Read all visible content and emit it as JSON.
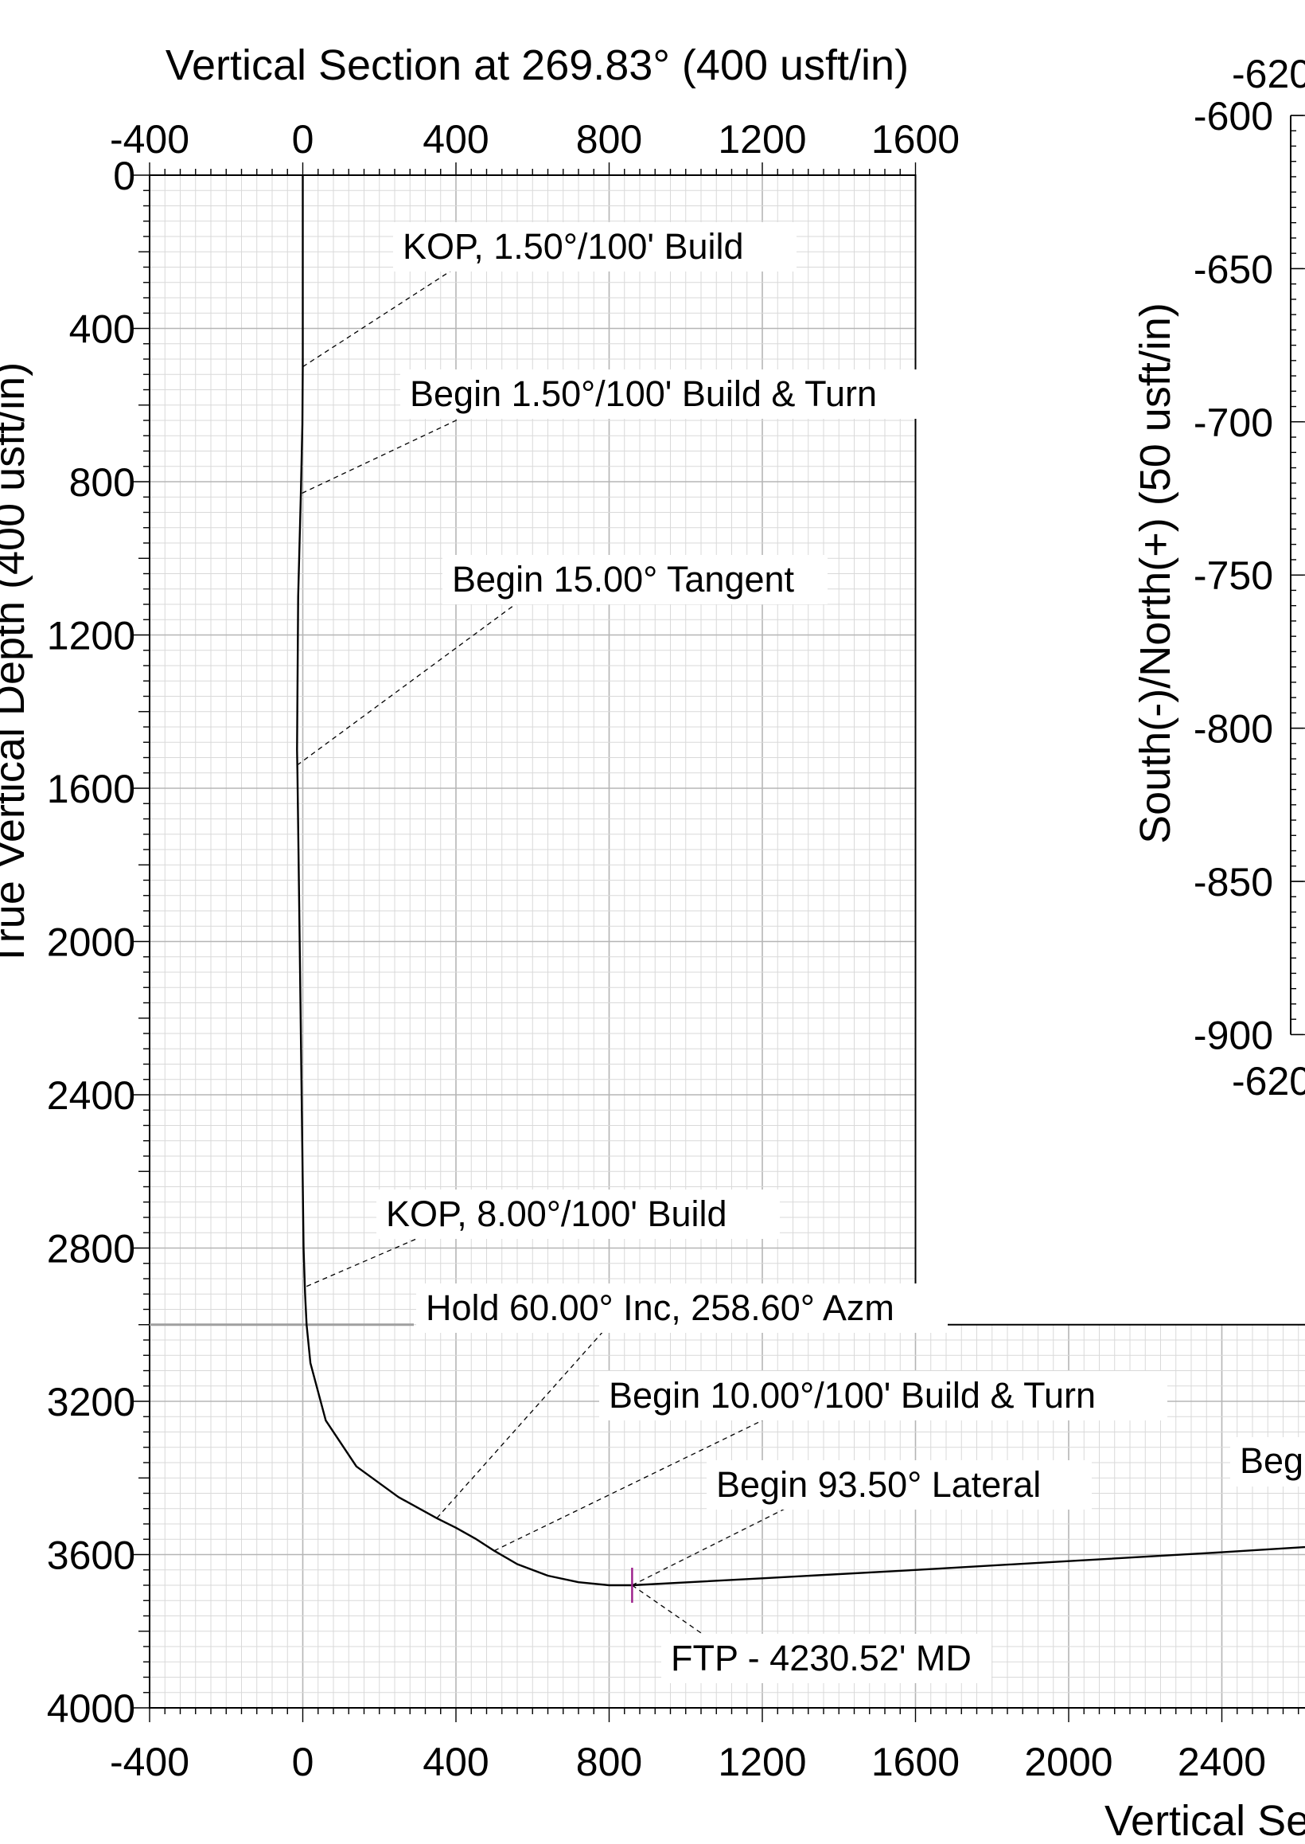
{
  "chart_data": [
    {
      "type": "line",
      "title": "Vertical Section at 269.83° (400 usft/in)",
      "xlabel": "Vertical Se",
      "ylabel": "True Vertical Depth (400 usft/in)",
      "xlim": [
        -400,
        2800
      ],
      "ylim": [
        4000,
        0
      ],
      "x_ticks_top": [
        "-400",
        "0",
        "400",
        "800",
        "1200",
        "1600"
      ],
      "x_ticks_bottom": [
        "-400",
        "0",
        "400",
        "800",
        "1200",
        "1600",
        "2000",
        "2400"
      ],
      "y_ticks": [
        "0",
        "400",
        "800",
        "1200",
        "1600",
        "2000",
        "2400",
        "2800",
        "3200",
        "3600",
        "4000"
      ],
      "grid": true,
      "series": [
        {
          "x": [
            0,
            0,
            -1,
            -5,
            -12,
            -15,
            -14,
            -12,
            -8,
            2,
            6,
            10,
            20,
            60,
            140,
            250,
            350,
            400,
            450,
            500,
            560,
            640,
            720,
            800,
            860,
            1200,
            1600,
            2000,
            2400,
            2800
          ],
          "y": [
            0,
            500,
            650,
            830,
            1100,
            1500,
            1560,
            1700,
            2000,
            2800,
            2920,
            3000,
            3100,
            3250,
            3370,
            3450,
            3505,
            3530,
            3558,
            3590,
            3625,
            3655,
            3672,
            3680,
            3680,
            3662,
            3640,
            3617,
            3594,
            3569
          ]
        }
      ],
      "annotations": [
        {
          "text": "KOP, 1.50°/100' Build",
          "x": 0,
          "y": 500,
          "label_x": 510,
          "label_y": 170
        },
        {
          "text": "Begin 1.50°/100' Build & Turn",
          "x": -2,
          "y": 830,
          "label_x": 570,
          "label_y": 560
        },
        {
          "text": "Begin 15.00° Tangent",
          "x": -15,
          "y": 1540,
          "label_x": 650,
          "label_y": 1050
        },
        {
          "text": "KOP, 8.00°/100' Build",
          "x": 10,
          "y": 2900,
          "label_x": 380,
          "label_y": 2740
        },
        {
          "text": "Hold 60.00° Inc, 258.60° Azm",
          "x": 350,
          "y": 3505,
          "label_x": 800,
          "label_y": 3000
        },
        {
          "text": "Begin 10.00°/100' Build & Turn",
          "x": 500,
          "y": 3590,
          "label_x": 1200,
          "label_y": 3250
        },
        {
          "text": "Begin 93.50° Lateral",
          "x": 860,
          "y": 3680,
          "label_x": 1260,
          "label_y": 3480
        },
        {
          "text": "FTP - 4230.52' MD",
          "x": 860,
          "y": 3680,
          "label_x": 1120,
          "label_y": 3860
        }
      ]
    },
    {
      "type": "line",
      "title": "",
      "xlabel": "",
      "ylabel": "South(-)/North(+) (50 usft/in)",
      "ylim": [
        -900,
        -600
      ],
      "y_ticks": [
        "-600",
        "-650",
        "-700",
        "-750",
        "-800",
        "-850",
        "-900"
      ],
      "x_tick_top": "-620",
      "x_tick_bottom": "-620",
      "series": []
    }
  ],
  "annotations_extra": [
    {
      "text": "Beg"
    }
  ]
}
